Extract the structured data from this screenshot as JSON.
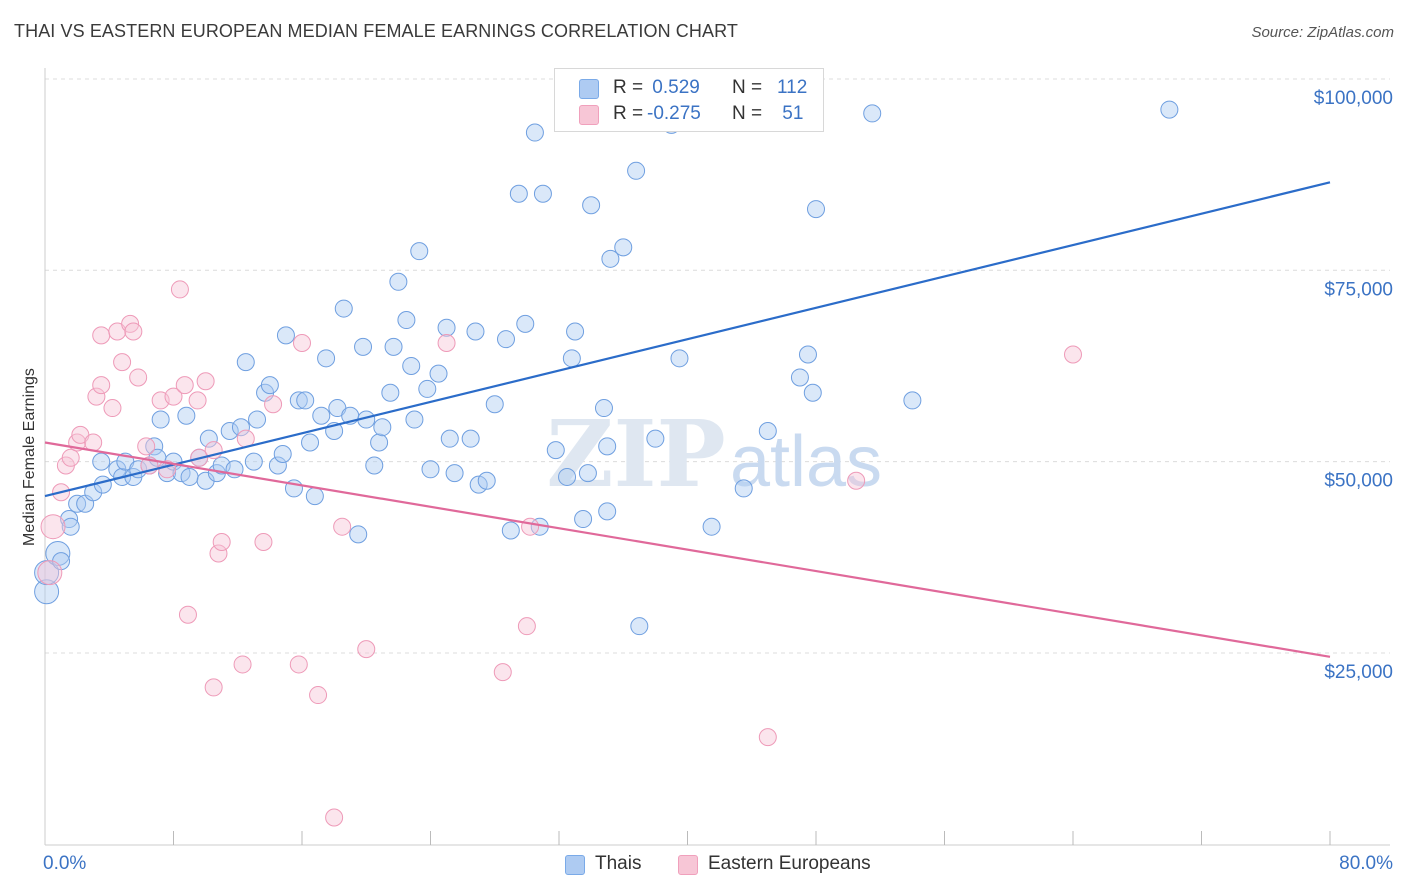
{
  "header": {
    "title": "THAI VS EASTERN EUROPEAN MEDIAN FEMALE EARNINGS CORRELATION CHART",
    "source": "Source: ZipAtlas.com"
  },
  "legend": {
    "rows": [
      {
        "r_label": "R =",
        "r_value": " 0.529",
        "n_label": "N =",
        "n_value": "112"
      },
      {
        "r_label": "R =",
        "r_value": "-0.275",
        "n_label": "N =",
        "n_value": " 51"
      }
    ]
  },
  "watermark": {
    "zip": "ZIP",
    "atlas": "atlas"
  },
  "chart_data": {
    "type": "scatter",
    "title": "THAI VS EASTERN EUROPEAN MEDIAN FEMALE EARNINGS CORRELATION CHART",
    "xlabel": "",
    "ylabel": "Median Female Earnings",
    "xlim": [
      0,
      80
    ],
    "ylim": [
      0,
      102000
    ],
    "x_tick_labels": [
      "0.0%",
      "80.0%"
    ],
    "y_ticks": [
      25000,
      50000,
      75000,
      100000
    ],
    "y_tick_labels": [
      "$25,000",
      "$50,000",
      "$75,000",
      "$100,000"
    ],
    "grid": true,
    "colors": {
      "Thais": "#7aaae8",
      "Eastern Europeans": "#f0a0bc",
      "Thais_line": "#2b6cc9",
      "Eastern_line": "#e0699a",
      "tick_text": "#3b73c4"
    },
    "series": [
      {
        "name": "Thais",
        "trend": {
          "x0": 0,
          "y0": 45500,
          "x1": 80,
          "y1": 86500
        },
        "points": [
          [
            0.1,
            33000
          ],
          [
            0.1,
            35500
          ],
          [
            0.8,
            38000
          ],
          [
            1,
            37000
          ],
          [
            1.5,
            42500
          ],
          [
            1.6,
            41500
          ],
          [
            2,
            44500
          ],
          [
            2.5,
            44500
          ],
          [
            3,
            46000
          ],
          [
            3.5,
            50000
          ],
          [
            3.6,
            47000
          ],
          [
            4.5,
            49000
          ],
          [
            4.8,
            48000
          ],
          [
            5,
            50000
          ],
          [
            5.5,
            48000
          ],
          [
            5.8,
            49000
          ],
          [
            6.5,
            49500
          ],
          [
            6.8,
            52000
          ],
          [
            7,
            50500
          ],
          [
            7.2,
            55500
          ],
          [
            7.6,
            48500
          ],
          [
            8,
            50000
          ],
          [
            8.5,
            48500
          ],
          [
            8.8,
            56000
          ],
          [
            9,
            48000
          ],
          [
            9.6,
            50500
          ],
          [
            10,
            47500
          ],
          [
            10.2,
            53000
          ],
          [
            10.7,
            48500
          ],
          [
            11,
            49500
          ],
          [
            11.5,
            54000
          ],
          [
            11.8,
            49000
          ],
          [
            12.2,
            54500
          ],
          [
            12.5,
            63000
          ],
          [
            13,
            50000
          ],
          [
            13.2,
            55500
          ],
          [
            13.7,
            59000
          ],
          [
            14,
            60000
          ],
          [
            14.5,
            49500
          ],
          [
            14.8,
            51000
          ],
          [
            15,
            66500
          ],
          [
            15.5,
            46500
          ],
          [
            15.8,
            58000
          ],
          [
            16.2,
            58000
          ],
          [
            16.5,
            52500
          ],
          [
            16.8,
            45500
          ],
          [
            17.2,
            56000
          ],
          [
            17.5,
            63500
          ],
          [
            18,
            54000
          ],
          [
            18.2,
            57000
          ],
          [
            18.6,
            70000
          ],
          [
            19,
            56000
          ],
          [
            19.5,
            40500
          ],
          [
            19.8,
            65000
          ],
          [
            20,
            55500
          ],
          [
            20.5,
            49500
          ],
          [
            20.8,
            52500
          ],
          [
            21,
            54500
          ],
          [
            21.5,
            59000
          ],
          [
            21.7,
            65000
          ],
          [
            22,
            73500
          ],
          [
            22.5,
            68500
          ],
          [
            22.8,
            62500
          ],
          [
            23,
            55500
          ],
          [
            23.3,
            77500
          ],
          [
            23.8,
            59500
          ],
          [
            24,
            49000
          ],
          [
            24.5,
            61500
          ],
          [
            25,
            67500
          ],
          [
            25.2,
            53000
          ],
          [
            25.5,
            48500
          ],
          [
            26.5,
            53000
          ],
          [
            26.8,
            67000
          ],
          [
            27,
            47000
          ],
          [
            27.5,
            47500
          ],
          [
            28,
            57500
          ],
          [
            28.7,
            66000
          ],
          [
            29,
            41000
          ],
          [
            29.5,
            85000
          ],
          [
            29.9,
            68000
          ],
          [
            30.5,
            93000
          ],
          [
            30.8,
            41500
          ],
          [
            31,
            85000
          ],
          [
            31.8,
            51500
          ],
          [
            32.5,
            48000
          ],
          [
            32.8,
            63500
          ],
          [
            33,
            67000
          ],
          [
            33.5,
            42500
          ],
          [
            33.8,
            48500
          ],
          [
            34,
            83500
          ],
          [
            34.8,
            57000
          ],
          [
            35,
            43500
          ],
          [
            35,
            52000
          ],
          [
            35.2,
            76500
          ],
          [
            36,
            78000
          ],
          [
            36.8,
            88000
          ],
          [
            37,
            28500
          ],
          [
            38,
            53000
          ],
          [
            39,
            94000
          ],
          [
            39.5,
            63500
          ],
          [
            41.5,
            41500
          ],
          [
            43.5,
            46500
          ],
          [
            45,
            54000
          ],
          [
            47,
            61000
          ],
          [
            47.5,
            64000
          ],
          [
            47.8,
            59000
          ],
          [
            48,
            83000
          ],
          [
            51.5,
            95500
          ],
          [
            54,
            58000
          ],
          [
            70,
            96000
          ]
        ]
      },
      {
        "name": "Eastern Europeans",
        "trend": {
          "x0": 0,
          "y0": 52500,
          "x1": 80,
          "y1": 24500
        },
        "points": [
          [
            0.3,
            35500
          ],
          [
            0.5,
            41500
          ],
          [
            1,
            46000
          ],
          [
            1.3,
            49500
          ],
          [
            1.6,
            50500
          ],
          [
            2,
            52500
          ],
          [
            2.2,
            53500
          ],
          [
            3,
            52500
          ],
          [
            3.2,
            58500
          ],
          [
            3.5,
            60000
          ],
          [
            3.5,
            66500
          ],
          [
            4.2,
            57000
          ],
          [
            4.5,
            67000
          ],
          [
            4.8,
            63000
          ],
          [
            5.3,
            68000
          ],
          [
            5.5,
            67000
          ],
          [
            5.8,
            61000
          ],
          [
            6.3,
            52000
          ],
          [
            6.5,
            49500
          ],
          [
            7.2,
            58000
          ],
          [
            7.6,
            49000
          ],
          [
            8,
            58500
          ],
          [
            8.4,
            72500
          ],
          [
            8.7,
            60000
          ],
          [
            8.9,
            30000
          ],
          [
            9.5,
            58000
          ],
          [
            9.6,
            50500
          ],
          [
            10,
            60500
          ],
          [
            10.5,
            51500
          ],
          [
            10.5,
            20500
          ],
          [
            10.8,
            38000
          ],
          [
            11,
            39500
          ],
          [
            12.3,
            23500
          ],
          [
            12.5,
            53000
          ],
          [
            13.6,
            39500
          ],
          [
            14.2,
            57500
          ],
          [
            15.8,
            23500
          ],
          [
            16,
            65500
          ],
          [
            17,
            19500
          ],
          [
            18,
            3500
          ],
          [
            18.5,
            41500
          ],
          [
            20,
            25500
          ],
          [
            25,
            65500
          ],
          [
            28.5,
            22500
          ],
          [
            30,
            28500
          ],
          [
            30.2,
            41500
          ],
          [
            45,
            14000
          ],
          [
            50.5,
            47500
          ],
          [
            64,
            64000
          ]
        ]
      }
    ]
  },
  "bottom_legend": [
    {
      "label": "Thais",
      "color": "#aecbf2"
    },
    {
      "label": "Eastern Europeans",
      "color": "#f7c6d6"
    }
  ]
}
